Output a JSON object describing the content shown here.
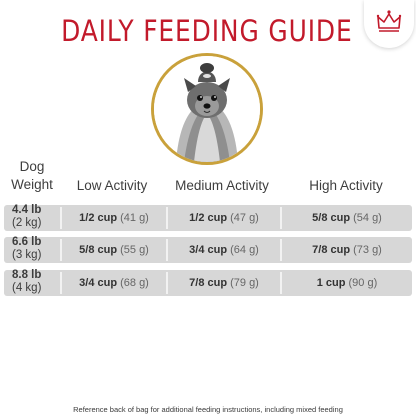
{
  "title": "DAILY FEEDING GUIDE",
  "header": {
    "weight_line1": "Dog",
    "weight_line2": "Weight",
    "low": "Low Activity",
    "medium": "Medium Activity",
    "high": "High Activity"
  },
  "rows": [
    {
      "weight_lb": "4.4 lb",
      "weight_kg": "(2 kg)",
      "low": {
        "cup": "1/2 cup",
        "grams": "(41 g)"
      },
      "medium": {
        "cup": "1/2 cup",
        "grams": "(47 g)"
      },
      "high": {
        "cup": "5/8 cup",
        "grams": "(54 g)"
      }
    },
    {
      "weight_lb": "6.6 lb",
      "weight_kg": "(3 kg)",
      "low": {
        "cup": "5/8 cup",
        "grams": "(55 g)"
      },
      "medium": {
        "cup": "3/4 cup",
        "grams": "(64 g)"
      },
      "high": {
        "cup": "7/8 cup",
        "grams": "(73 g)"
      }
    },
    {
      "weight_lb": "8.8 lb",
      "weight_kg": "(4 kg)",
      "low": {
        "cup": "3/4 cup",
        "grams": "(68 g)"
      },
      "medium": {
        "cup": "7/8 cup",
        "grams": "(79 g)"
      },
      "high": {
        "cup": "1 cup",
        "grams": "(90 g)"
      }
    }
  ],
  "footnote": "Reference back of bag for additional feeding instructions, including mixed feeding",
  "icons": {
    "logo": "crown-logo-icon",
    "photo": "dog-photo"
  },
  "colors": {
    "title": "#c21a2b",
    "ring": "#c9a13b",
    "row_bg": "#d7d7d7"
  }
}
